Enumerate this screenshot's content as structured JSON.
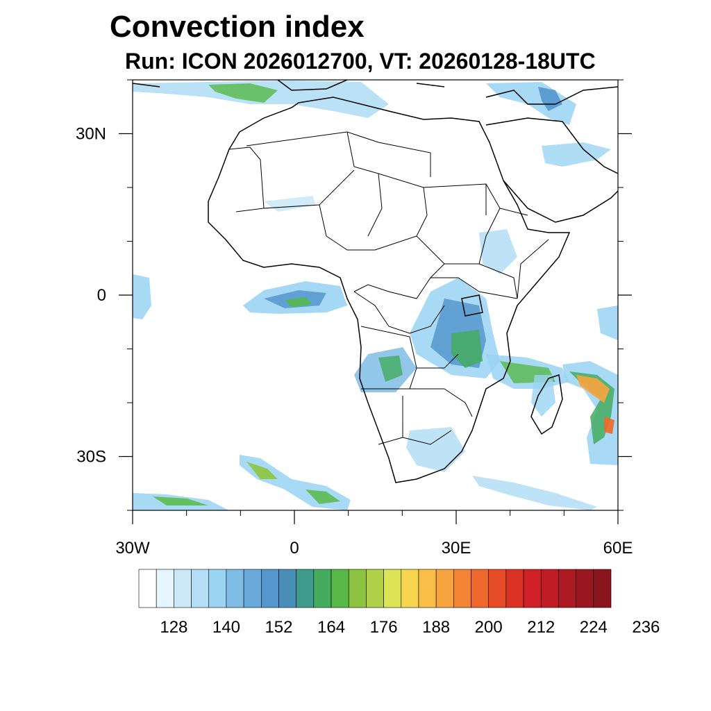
{
  "title": "Convection index",
  "subtitle": "Run: ICON 2026012700,  VT: 20260128-18UTC",
  "map": {
    "lon_range": [
      -30,
      60
    ],
    "lat_range": [
      -40,
      40
    ],
    "x_ticks": [
      {
        "value": -30,
        "label": "30W"
      },
      {
        "value": 0,
        "label": "0"
      },
      {
        "value": 30,
        "label": "30E"
      },
      {
        "value": 60,
        "label": "60E"
      }
    ],
    "y_ticks": [
      {
        "value": 30,
        "label": "30N"
      },
      {
        "value": 0,
        "label": "0"
      },
      {
        "value": -30,
        "label": "30S"
      }
    ],
    "minor_x_step": 10,
    "minor_y_step": 10
  },
  "colorbar": {
    "colors": [
      "#ffffff",
      "#e6f5fd",
      "#cce9f8",
      "#b3def5",
      "#9ad4f3",
      "#7fbde6",
      "#6aaadb",
      "#5596cd",
      "#4a8fb8",
      "#3f9c8c",
      "#44ab5f",
      "#58b848",
      "#8cc43f",
      "#b1d14a",
      "#dde455",
      "#f6d550",
      "#f9bf49",
      "#f7a33e",
      "#f48534",
      "#ee672b",
      "#e54c27",
      "#db3226",
      "#cf2127",
      "#bf1c26",
      "#ad1a24",
      "#991820",
      "#8a161d"
    ],
    "labels": [
      "128",
      "140",
      "152",
      "164",
      "176",
      "188",
      "200",
      "212",
      "224",
      "236"
    ],
    "levels": [
      128,
      140,
      152,
      164,
      176,
      188,
      200,
      212,
      224,
      236
    ]
  }
}
